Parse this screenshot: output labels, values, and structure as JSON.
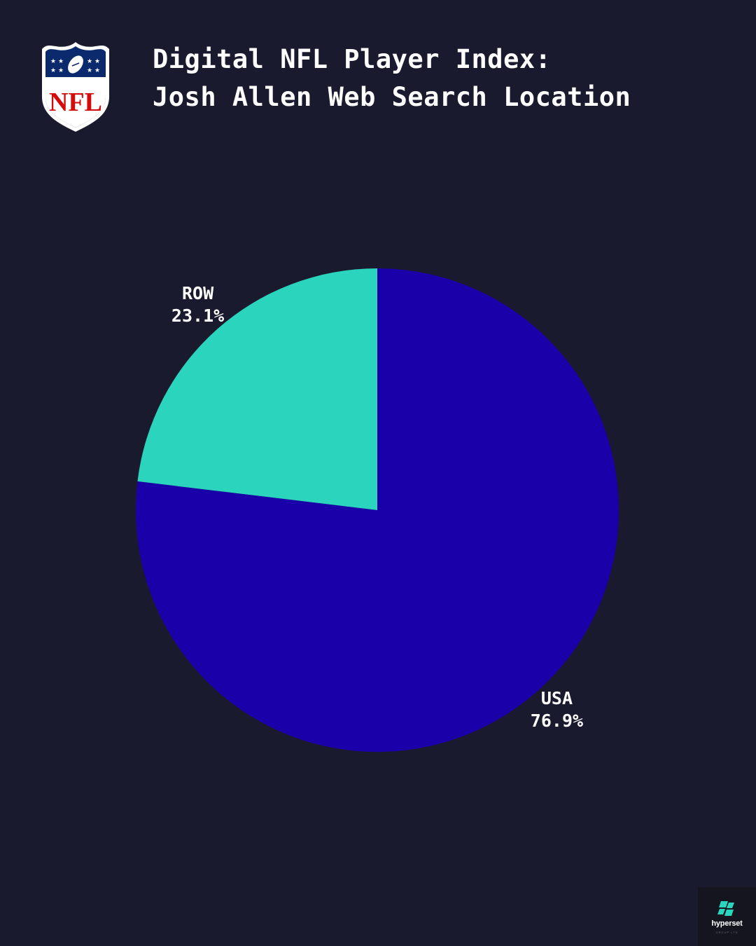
{
  "header": {
    "title_line1": "Digital NFL Player Index:",
    "title_line2": "Josh Allen Web Search Location",
    "logo_icon": "nfl-shield-logo",
    "logo_text": "NFL"
  },
  "chart_data": {
    "type": "pie",
    "series": [
      {
        "name": "USA",
        "value": 76.9,
        "label": "76.9%",
        "color": "#1a00a8"
      },
      {
        "name": "ROW",
        "value": 23.1,
        "label": "23.1%",
        "color": "#2ad4bd"
      }
    ]
  },
  "brand": {
    "icon": "hyperset-logo-icon",
    "name": "hyperset",
    "tagline": "GROUP LTD",
    "accent_color": "#2ad4bd"
  }
}
